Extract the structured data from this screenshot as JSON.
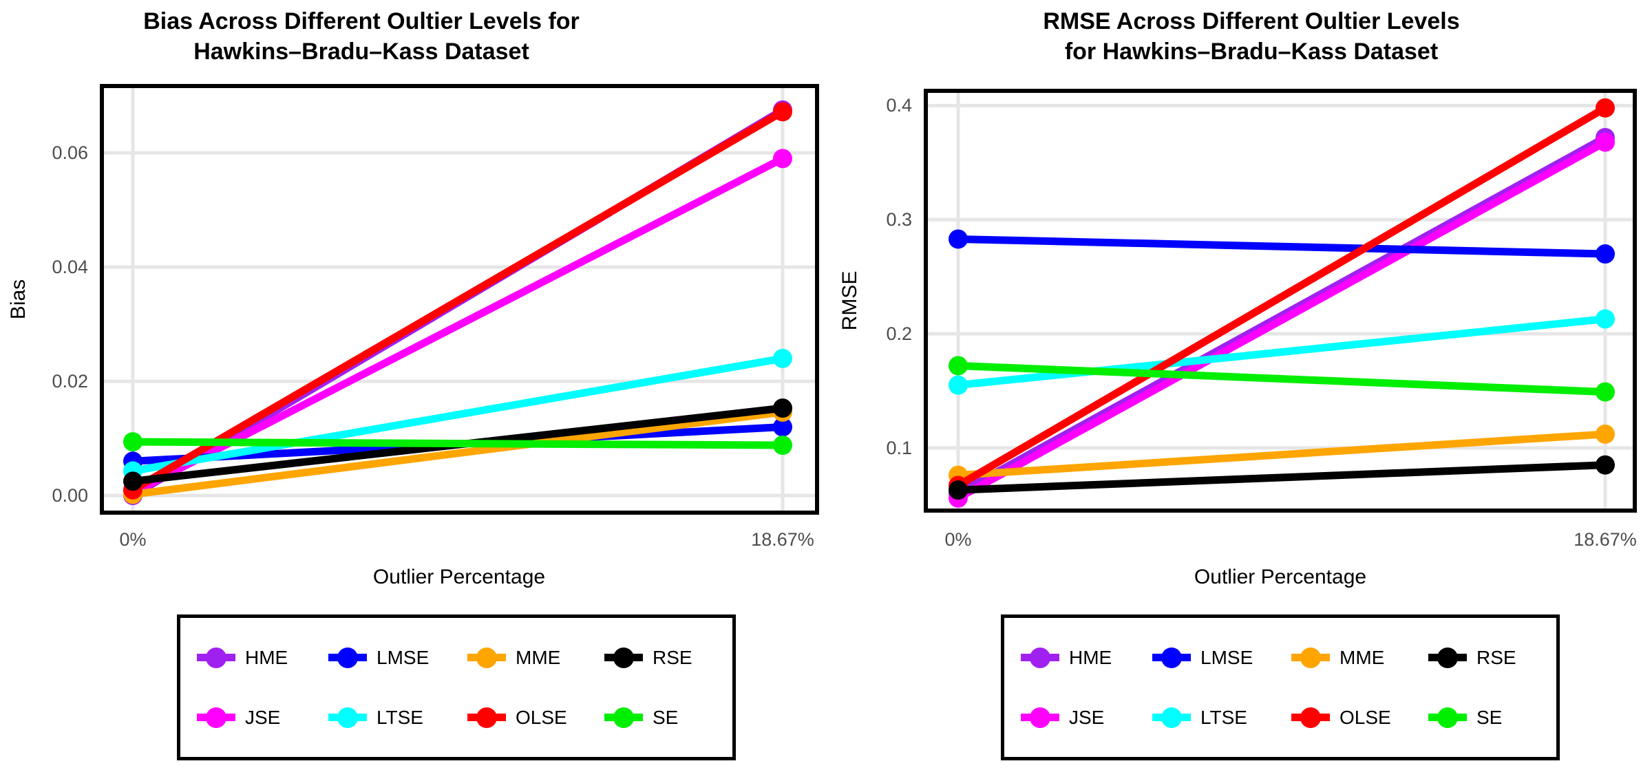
{
  "figure": {
    "background": "#FFFFFF"
  },
  "styles": {
    "series_colors": {
      "HME": "#A020F0",
      "JSE": "#FF00FF",
      "LMSE": "#0000FF",
      "LTSE": "#00FFFF",
      "MME": "#FFA500",
      "OLSE": "#FF0000",
      "RSE": "#000000",
      "SE": "#00EE00"
    },
    "grid_color": "#E6E6E6",
    "tick_label_color": "#4D4D4D",
    "panel_border_color": "#000000"
  },
  "chart_data": [
    {
      "type": "line",
      "title_lines": [
        "Bias Across Different Oultier Levels for",
        "Hawkins–Bradu–Kass Dataset"
      ],
      "xlabel": "Outlier Percentage",
      "ylabel": "Bias",
      "x_categories": [
        "0%",
        "18.67%"
      ],
      "y_ticks": [
        0.0,
        0.02,
        0.04,
        0.06
      ],
      "y_tick_labels": [
        "0.00",
        "0.02",
        "0.04",
        "0.06"
      ],
      "ylim": [
        -0.003,
        0.0717
      ],
      "grid": true,
      "legend_position": "bottom",
      "series": [
        {
          "name": "HME",
          "values": [
            0.0,
            0.0675
          ]
        },
        {
          "name": "JSE",
          "values": [
            0.0005,
            0.059
          ]
        },
        {
          "name": "LMSE",
          "values": [
            0.006,
            0.012
          ]
        },
        {
          "name": "LTSE",
          "values": [
            0.0043,
            0.024
          ]
        },
        {
          "name": "MME",
          "values": [
            0.0002,
            0.0146
          ]
        },
        {
          "name": "OLSE",
          "values": [
            0.001,
            0.0672
          ]
        },
        {
          "name": "RSE",
          "values": [
            0.0025,
            0.0153
          ]
        },
        {
          "name": "SE",
          "values": [
            0.0094,
            0.0088
          ]
        }
      ]
    },
    {
      "type": "line",
      "title_lines": [
        "RMSE Across Different Oultier Levels",
        "for Hawkins–Bradu–Kass Dataset"
      ],
      "xlabel": "Outlier Percentage",
      "ylabel": "RMSE",
      "x_categories": [
        "0%",
        "18.67%"
      ],
      "y_ticks": [
        0.1,
        0.2,
        0.3,
        0.4
      ],
      "y_tick_labels": [
        "0.1",
        "0.2",
        "0.3",
        "0.4"
      ],
      "ylim": [
        0.045,
        0.413
      ],
      "grid": true,
      "legend_position": "bottom",
      "series": [
        {
          "name": "HME",
          "values": [
            0.06,
            0.372
          ]
        },
        {
          "name": "JSE",
          "values": [
            0.056,
            0.368
          ]
        },
        {
          "name": "LMSE",
          "values": [
            0.283,
            0.27
          ]
        },
        {
          "name": "LTSE",
          "values": [
            0.155,
            0.213
          ]
        },
        {
          "name": "MME",
          "values": [
            0.076,
            0.112
          ]
        },
        {
          "name": "OLSE",
          "values": [
            0.067,
            0.398
          ]
        },
        {
          "name": "RSE",
          "values": [
            0.063,
            0.085
          ]
        },
        {
          "name": "SE",
          "values": [
            0.172,
            0.149
          ]
        }
      ]
    }
  ],
  "legend": {
    "rows": [
      [
        "HME",
        "LMSE",
        "MME",
        "RSE"
      ],
      [
        "JSE",
        "LTSE",
        "OLSE",
        "SE"
      ]
    ]
  }
}
